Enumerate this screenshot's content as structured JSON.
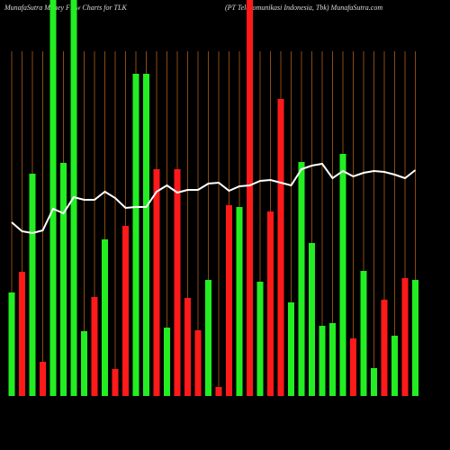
{
  "chart_data": {
    "type": "bar",
    "title": "MunafaSutra  Money Flow  Charts for TLK",
    "subtitle": "(PT Telekomunikasi  Indonesia,  Tbk) MunafaSutra.com",
    "values": [
      115,
      138,
      247,
      38,
      440,
      259,
      440,
      72,
      110,
      174,
      30,
      189,
      358,
      358,
      252,
      76,
      252,
      109,
      73,
      129,
      10,
      212,
      210,
      440,
      127,
      205,
      330,
      104,
      260,
      170,
      78,
      81,
      269,
      64,
      139,
      31,
      107,
      67,
      131,
      129
    ],
    "colors": [
      "#22ee22",
      "#ff1a1a",
      "#22ee22",
      "#ff1a1a",
      "#22ee22",
      "#22ee22",
      "#22ee22",
      "#22ee22",
      "#ff1a1a",
      "#22ee22",
      "#ff1a1a",
      "#ff1a1a",
      "#22ee22",
      "#22ee22",
      "#ff1a1a",
      "#22ee22",
      "#ff1a1a",
      "#ff1a1a",
      "#ff1a1a",
      "#22ee22",
      "#ff1a1a",
      "#ff1a1a",
      "#22ee22",
      "#ff1a1a",
      "#22ee22",
      "#ff1a1a",
      "#ff1a1a",
      "#22ee22",
      "#22ee22",
      "#22ee22",
      "#22ee22",
      "#22ee22",
      "#22ee22",
      "#ff1a1a",
      "#22ee22",
      "#22ee22",
      "#ff1a1a",
      "#22ee22",
      "#ff1a1a",
      "#22ee22"
    ],
    "line": {
      "color": "#ffffff",
      "values": [
        193,
        183,
        181,
        184,
        208,
        203,
        221,
        218,
        218,
        227,
        220,
        209,
        210,
        210,
        227,
        234,
        226,
        229,
        229,
        236,
        237,
        228,
        233,
        234,
        239,
        240,
        237,
        234,
        252,
        256,
        258,
        242,
        250,
        244,
        248,
        250,
        249,
        246,
        242,
        251
      ]
    },
    "ylim": [
      0,
      440
    ],
    "grid": true,
    "grid_color": "#8b4a12"
  }
}
